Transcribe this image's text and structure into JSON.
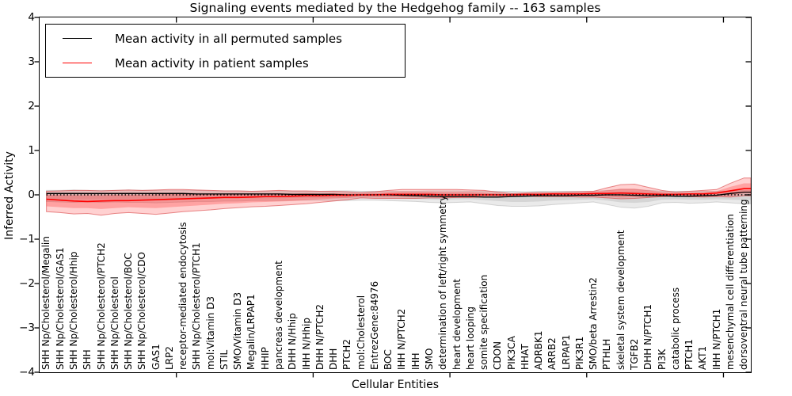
{
  "title": "Signaling events mediated by the Hedgehog family -- 163 samples",
  "axes": {
    "xlabel": "Cellular Entities",
    "ylabel": "Inferred Activity",
    "yticks": [
      "4",
      "3",
      "2",
      "1",
      "0",
      "−1",
      "−2",
      "−3",
      "−4"
    ]
  },
  "legend": {
    "entries": [
      {
        "label": "Mean activity in all permuted samples",
        "color": "#000000"
      },
      {
        "label": "Mean activity in patient samples",
        "color": "#ff0000"
      }
    ]
  },
  "chart_data": {
    "type": "line",
    "title": "Signaling events mediated by the Hedgehog family -- 163 samples",
    "xlabel": "Cellular Entities",
    "ylabel": "Inferred Activity",
    "ylim": [
      -4,
      4
    ],
    "x_major_ticks": [
      10,
      20,
      30,
      40,
      50
    ],
    "grid": false,
    "legend_position": "upper left",
    "categories": [
      "SHH Np/Cholesterol/Megalin",
      "SHH Np/Cholesterol/GAS1",
      "SHH Np/Cholesterol/Hhip",
      "SHH",
      "SHH Np/Cholesterol/PTCH2",
      "SHH Np/Cholesterol",
      "SHH Np/Cholesterol/BOC",
      "SHH Np/Cholesterol/CDO",
      "GAS1",
      "LRP2",
      "receptor-mediated endocytosis",
      "SHH Np/Cholesterol/PTCH1",
      "mol:Vitamin D3",
      "STIL",
      "SMO/Vitamin D3",
      "Megalin/LRPAP1",
      "HHIP",
      "pancreas development",
      "DHH N/Hhip",
      "IHH N/Hhip",
      "DHH N/PTCH2",
      "DHH",
      "PTCH2",
      "mol:Cholesterol",
      "EntrezGene:84976",
      "BOC",
      "IHH N/PTCH2",
      "IHH",
      "SMO",
      "determination of left/right symmetry",
      "heart development",
      "heart looping",
      "somite specification",
      "CDON",
      "PIK3CA",
      "HHAT",
      "ADRBK1",
      "ARRB2",
      "LRPAP1",
      "PIK3R1",
      "SMO/beta Arrestin2",
      "PTHLH",
      "skeletal system development",
      "TGFB2",
      "DHH N/PTCH1",
      "PI3K",
      "catabolic process",
      "PTCH1",
      "AKT1",
      "IHH N/PTCH1",
      "mesenchymal cell differentiation",
      "dorsoventral neural tube patterning"
    ],
    "series": [
      {
        "name": "Mean activity in all permuted samples",
        "color": "#000000",
        "style": "solid",
        "width": 1.3,
        "values": [
          0.03,
          0.03,
          0.03,
          0.03,
          0.03,
          0.03,
          0.03,
          0.03,
          0.03,
          0.03,
          0.03,
          0.02,
          0.02,
          0.02,
          0.02,
          0.02,
          0.02,
          0.02,
          0.01,
          0.01,
          0.01,
          0.01,
          0.0,
          0.0,
          0.0,
          0.0,
          -0.01,
          -0.02,
          -0.03,
          -0.04,
          -0.04,
          -0.04,
          -0.05,
          -0.05,
          -0.04,
          -0.03,
          -0.02,
          -0.02,
          -0.02,
          -0.01,
          -0.01,
          0.0,
          0.0,
          -0.01,
          -0.02,
          -0.02,
          -0.03,
          -0.03,
          -0.02,
          -0.01,
          0.03,
          0.06
        ]
      },
      {
        "name": "Mean activity in patient samples",
        "color": "#ff0000",
        "style": "solid",
        "width": 1.6,
        "values": [
          -0.1,
          -0.12,
          -0.14,
          -0.15,
          -0.14,
          -0.13,
          -0.13,
          -0.12,
          -0.11,
          -0.1,
          -0.09,
          -0.08,
          -0.07,
          -0.06,
          -0.06,
          -0.05,
          -0.04,
          -0.04,
          -0.03,
          -0.02,
          -0.02,
          -0.01,
          -0.01,
          0.0,
          0.0,
          0.01,
          0.01,
          0.01,
          0.01,
          0.0,
          0.0,
          0.0,
          0.0,
          0.0,
          0.0,
          0.01,
          0.01,
          0.02,
          0.02,
          0.02,
          0.03,
          0.03,
          0.04,
          0.03,
          0.02,
          0.01,
          0.01,
          0.02,
          0.02,
          0.04,
          0.09,
          0.14
        ]
      }
    ],
    "bands": [
      {
        "name": "permuted-samples-range-outer",
        "fill": "rgba(128,128,128,0.17)",
        "stroke": "rgba(128,128,128,0.30)",
        "upper": [
          0.1,
          0.1,
          0.11,
          0.1,
          0.1,
          0.1,
          0.11,
          0.1,
          0.1,
          0.1,
          0.1,
          0.1,
          0.09,
          0.09,
          0.09,
          0.08,
          0.08,
          0.08,
          0.08,
          0.08,
          0.08,
          0.09,
          0.09,
          0.08,
          0.08,
          0.08,
          0.08,
          0.08,
          0.09,
          0.09,
          0.09,
          0.08,
          0.08,
          0.08,
          0.08,
          0.07,
          0.08,
          0.08,
          0.08,
          0.08,
          0.08,
          0.1,
          0.12,
          0.12,
          0.1,
          0.08,
          0.08,
          0.08,
          0.08,
          0.08,
          0.09,
          0.1
        ],
        "lower": [
          -0.15,
          -0.16,
          -0.17,
          -0.16,
          -0.17,
          -0.16,
          -0.17,
          -0.17,
          -0.18,
          -0.17,
          -0.16,
          -0.15,
          -0.15,
          -0.14,
          -0.14,
          -0.13,
          -0.13,
          -0.13,
          -0.12,
          -0.12,
          -0.12,
          -0.13,
          -0.13,
          -0.12,
          -0.12,
          -0.13,
          -0.14,
          -0.15,
          -0.17,
          -0.18,
          -0.17,
          -0.16,
          -0.2,
          -0.24,
          -0.26,
          -0.26,
          -0.25,
          -0.22,
          -0.2,
          -0.18,
          -0.16,
          -0.22,
          -0.28,
          -0.3,
          -0.26,
          -0.18,
          -0.17,
          -0.19,
          -0.18,
          -0.16,
          -0.18,
          -0.2
        ]
      },
      {
        "name": "permuted-samples-range-inner",
        "fill": "rgba(128,128,128,0.20)",
        "stroke": "none",
        "upper": [
          0.06,
          0.06,
          0.07,
          0.06,
          0.06,
          0.06,
          0.07,
          0.06,
          0.06,
          0.06,
          0.06,
          0.06,
          0.05,
          0.05,
          0.05,
          0.05,
          0.05,
          0.05,
          0.05,
          0.05,
          0.05,
          0.05,
          0.05,
          0.05,
          0.05,
          0.05,
          0.05,
          0.05,
          0.05,
          0.05,
          0.05,
          0.05,
          0.05,
          0.05,
          0.05,
          0.04,
          0.05,
          0.05,
          0.05,
          0.05,
          0.05,
          0.06,
          0.07,
          0.07,
          0.06,
          0.05,
          0.05,
          0.05,
          0.05,
          0.05,
          0.06,
          0.06
        ],
        "lower": [
          -0.09,
          -0.1,
          -0.1,
          -0.1,
          -0.1,
          -0.1,
          -0.1,
          -0.1,
          -0.11,
          -0.1,
          -0.1,
          -0.09,
          -0.09,
          -0.08,
          -0.08,
          -0.08,
          -0.08,
          -0.08,
          -0.07,
          -0.07,
          -0.07,
          -0.08,
          -0.08,
          -0.07,
          -0.07,
          -0.08,
          -0.08,
          -0.09,
          -0.1,
          -0.11,
          -0.1,
          -0.1,
          -0.12,
          -0.14,
          -0.16,
          -0.16,
          -0.15,
          -0.13,
          -0.12,
          -0.11,
          -0.1,
          -0.13,
          -0.17,
          -0.18,
          -0.16,
          -0.11,
          -0.1,
          -0.11,
          -0.11,
          -0.1,
          -0.11,
          -0.12
        ]
      },
      {
        "name": "patient-samples-range-outer",
        "fill": "rgba(255,38,38,0.21)",
        "stroke": "rgba(214,48,49,0.55)",
        "upper": [
          0.08,
          0.09,
          0.1,
          0.1,
          0.09,
          0.1,
          0.11,
          0.1,
          0.11,
          0.12,
          0.12,
          0.11,
          0.1,
          0.09,
          0.09,
          0.08,
          0.09,
          0.1,
          0.09,
          0.09,
          0.08,
          0.08,
          0.07,
          0.05,
          0.07,
          0.1,
          0.12,
          0.12,
          0.12,
          0.12,
          0.12,
          0.11,
          0.1,
          0.06,
          0.03,
          0.04,
          0.05,
          0.05,
          0.06,
          0.07,
          0.08,
          0.16,
          0.23,
          0.24,
          0.17,
          0.1,
          0.06,
          0.08,
          0.1,
          0.12,
          0.26,
          0.38
        ],
        "lower": [
          -0.38,
          -0.4,
          -0.43,
          -0.42,
          -0.46,
          -0.42,
          -0.4,
          -0.42,
          -0.44,
          -0.41,
          -0.38,
          -0.36,
          -0.34,
          -0.31,
          -0.29,
          -0.27,
          -0.26,
          -0.24,
          -0.22,
          -0.2,
          -0.17,
          -0.14,
          -0.11,
          -0.07,
          -0.08,
          -0.08,
          -0.08,
          -0.08,
          -0.07,
          -0.07,
          -0.06,
          -0.06,
          -0.05,
          -0.04,
          -0.02,
          -0.03,
          -0.04,
          -0.04,
          -0.04,
          -0.05,
          -0.05,
          -0.07,
          -0.09,
          -0.08,
          -0.06,
          -0.04,
          -0.03,
          -0.04,
          -0.05,
          -0.04,
          -0.05,
          -0.02
        ]
      },
      {
        "name": "patient-samples-range-inner",
        "fill": "rgba(255,38,38,0.28)",
        "stroke": "none",
        "upper": [
          0.0,
          0.0,
          -0.01,
          -0.01,
          -0.01,
          0.0,
          0.0,
          0.0,
          0.01,
          0.02,
          0.02,
          0.02,
          0.02,
          0.02,
          0.02,
          0.02,
          0.03,
          0.03,
          0.03,
          0.04,
          0.03,
          0.04,
          0.03,
          0.03,
          0.04,
          0.06,
          0.07,
          0.07,
          0.07,
          0.06,
          0.06,
          0.06,
          0.05,
          0.03,
          0.02,
          0.03,
          0.03,
          0.04,
          0.04,
          0.05,
          0.06,
          0.1,
          0.14,
          0.14,
          0.1,
          0.06,
          0.04,
          0.05,
          0.06,
          0.08,
          0.18,
          0.26
        ],
        "lower": [
          -0.26,
          -0.28,
          -0.3,
          -0.3,
          -0.32,
          -0.3,
          -0.28,
          -0.29,
          -0.3,
          -0.28,
          -0.26,
          -0.24,
          -0.22,
          -0.2,
          -0.19,
          -0.17,
          -0.16,
          -0.15,
          -0.14,
          -0.12,
          -0.1,
          -0.08,
          -0.07,
          -0.04,
          -0.05,
          -0.05,
          -0.05,
          -0.05,
          -0.04,
          -0.04,
          -0.04,
          -0.04,
          -0.03,
          -0.02,
          -0.01,
          -0.02,
          -0.02,
          -0.02,
          -0.02,
          -0.03,
          -0.03,
          -0.04,
          -0.06,
          -0.05,
          -0.04,
          -0.03,
          -0.02,
          -0.03,
          -0.03,
          -0.02,
          -0.02,
          0.04
        ]
      }
    ],
    "zero_line": {
      "y": 0,
      "style": "dotted",
      "color": "#000000"
    }
  }
}
